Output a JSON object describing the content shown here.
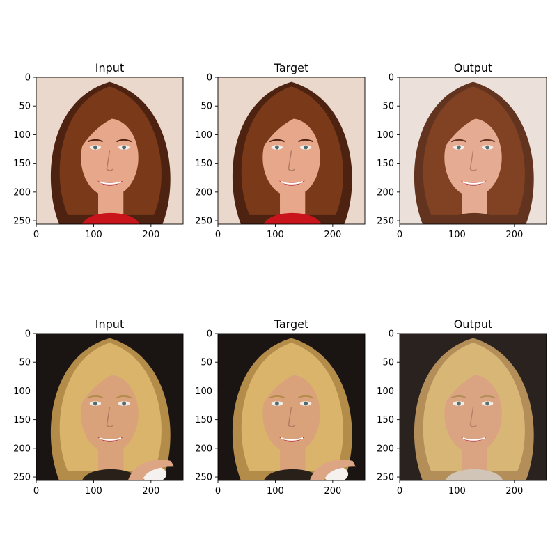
{
  "chart_data": [
    {
      "type": "image",
      "title": "Input",
      "xlim": [
        0,
        256
      ],
      "ylim": [
        256,
        0
      ],
      "xticks": [
        0,
        100,
        200
      ],
      "yticks": [
        0,
        50,
        100,
        150,
        200,
        250
      ],
      "content": "portrait, woman with auburn wavy hair, red top, light background"
    },
    {
      "type": "image",
      "title": "Target",
      "xlim": [
        0,
        256
      ],
      "ylim": [
        256,
        0
      ],
      "xticks": [
        0,
        100,
        200
      ],
      "yticks": [
        0,
        50,
        100,
        150,
        200,
        250
      ],
      "content": "portrait, woman with auburn wavy hair, red top, light background"
    },
    {
      "type": "image",
      "title": "Output",
      "xlim": [
        0,
        256
      ],
      "ylim": [
        256,
        0
      ],
      "xticks": [
        0,
        100,
        200
      ],
      "yticks": [
        0,
        50,
        100,
        150,
        200,
        250
      ],
      "content": "generated portrait, auburn hair, smoother"
    },
    {
      "type": "image",
      "title": "Input",
      "xlim": [
        0,
        256
      ],
      "ylim": [
        256,
        0
      ],
      "xticks": [
        0,
        100,
        200
      ],
      "yticks": [
        0,
        50,
        100,
        150,
        200,
        250
      ],
      "content": "portrait, blonde woman, dark background"
    },
    {
      "type": "image",
      "title": "Target",
      "xlim": [
        0,
        256
      ],
      "ylim": [
        256,
        0
      ],
      "xticks": [
        0,
        100,
        200
      ],
      "yticks": [
        0,
        50,
        100,
        150,
        200,
        250
      ],
      "content": "portrait, blonde woman, dark background"
    },
    {
      "type": "image",
      "title": "Output",
      "xlim": [
        0,
        256
      ],
      "ylim": [
        256,
        0
      ],
      "xticks": [
        0,
        100,
        200
      ],
      "yticks": [
        0,
        50,
        100,
        150,
        200,
        250
      ],
      "content": "generated portrait, blonde woman, dark background"
    }
  ],
  "colors": {
    "auburn_hair": "#7a3a1a",
    "auburn_hair_dark": "#4e2210",
    "auburn_bg": "#ead8cc",
    "skin_light": "#e6a78a",
    "red_top": "#c8141a",
    "blonde_hair": "#d9b46a",
    "blonde_hair_light": "#ecd29a",
    "dark_bg": "#1a1412",
    "skin_blonde": "#d9a27a"
  }
}
